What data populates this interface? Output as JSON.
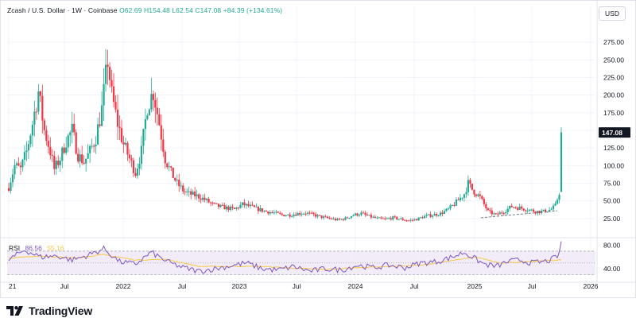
{
  "legend": {
    "symbol": "Zcash / U.S. Dollar · 1W · Coinbase",
    "open": "O62.69",
    "high": "H154.48",
    "low": "L62.54",
    "close": "C147.08",
    "change": "+84.39 (+134.61%)"
  },
  "currency": "USD",
  "last_price_label": "147.08",
  "rsi": {
    "title": "RSI",
    "value": "86.56",
    "ma_value": "55.16"
  },
  "brand": "TradingView",
  "colors": {
    "up": "#22ab94",
    "down": "#f23645",
    "rsi": "#7e57c2",
    "rsi_ma": "#f7c948",
    "rsi_band": "#ede7f6",
    "grid": "#f0f3fa",
    "text": "#131722",
    "axis_text": "#131722"
  },
  "chart_data": [
    {
      "type": "candlestick",
      "title": "Zcash / U.S. Dollar · 1W · Coinbase",
      "ylim": [
        0,
        300
      ],
      "y_ticks": [
        25,
        50,
        75,
        100,
        125,
        150,
        175,
        200,
        225,
        250,
        275
      ],
      "x_ticks": [
        "21",
        "Jul",
        "2022",
        "Jul",
        "2023",
        "Jul",
        "2024",
        "Jul",
        "2025",
        "Jul",
        "2026"
      ],
      "last_price": 147.08,
      "grid": true,
      "series": [
        {
          "name": "Zcash / U.S. Dollar",
          "anchors_week_close": [
            [
              0,
              70
            ],
            [
              3,
              100
            ],
            [
              6,
              95
            ],
            [
              9,
              120
            ],
            [
              12,
              160
            ],
            [
              15,
              205
            ],
            [
              18,
              150
            ],
            [
              21,
              120
            ],
            [
              23,
              95
            ],
            [
              26,
              110
            ],
            [
              29,
              135
            ],
            [
              32,
              150
            ],
            [
              35,
              115
            ],
            [
              38,
              105
            ],
            [
              41,
              120
            ],
            [
              44,
              140
            ],
            [
              47,
              180
            ],
            [
              50,
              250
            ],
            [
              52,
              200
            ],
            [
              55,
              160
            ],
            [
              58,
              130
            ],
            [
              61,
              110
            ],
            [
              64,
              90
            ],
            [
              67,
              120
            ],
            [
              70,
              185
            ],
            [
              73,
              205
            ],
            [
              76,
              160
            ],
            [
              79,
              110
            ],
            [
              82,
              90
            ],
            [
              85,
              75
            ],
            [
              88,
              65
            ],
            [
              91,
              60
            ],
            [
              94,
              58
            ],
            [
              97,
              55
            ],
            [
              100,
              50
            ],
            [
              103,
              45
            ],
            [
              106,
              42
            ],
            [
              110,
              40
            ],
            [
              114,
              38
            ],
            [
              118,
              45
            ],
            [
              122,
              42
            ],
            [
              126,
              38
            ],
            [
              130,
              35
            ],
            [
              134,
              33
            ],
            [
              138,
              30
            ],
            [
              142,
              30
            ],
            [
              146,
              32
            ],
            [
              150,
              33
            ],
            [
              154,
              30
            ],
            [
              158,
              27
            ],
            [
              162,
              25
            ],
            [
              166,
              23
            ],
            [
              170,
              25
            ],
            [
              174,
              30
            ],
            [
              178,
              32
            ],
            [
              182,
              28
            ],
            [
              186,
              25
            ],
            [
              190,
              24
            ],
            [
              194,
              26
            ],
            [
              198,
              24
            ],
            [
              202,
              22
            ],
            [
              206,
              24
            ],
            [
              210,
              28
            ],
            [
              214,
              30
            ],
            [
              218,
              32
            ],
            [
              222,
              38
            ],
            [
              226,
              48
            ],
            [
              230,
              60
            ],
            [
              232,
              75
            ],
            [
              234,
              66
            ],
            [
              238,
              55
            ],
            [
              240,
              45
            ],
            [
              242,
              35
            ],
            [
              246,
              30
            ],
            [
              250,
              35
            ],
            [
              254,
              42
            ],
            [
              258,
              40
            ],
            [
              262,
              38
            ],
            [
              266,
              35
            ],
            [
              270,
              35
            ],
            [
              274,
              38
            ],
            [
              276,
              43
            ],
            [
              278,
              62
            ],
            [
              279,
              150
            ]
          ]
        }
      ]
    },
    {
      "type": "line",
      "title": "RSI",
      "ylim": [
        20,
        90
      ],
      "y_ticks": [
        40,
        80
      ],
      "band": [
        30,
        70
      ],
      "series": [
        {
          "name": "RSI",
          "anchors": [
            [
              0,
              55
            ],
            [
              8,
              72
            ],
            [
              16,
              60
            ],
            [
              24,
              62
            ],
            [
              32,
              55
            ],
            [
              40,
              63
            ],
            [
              48,
              74
            ],
            [
              56,
              52
            ],
            [
              64,
              48
            ],
            [
              72,
              68
            ],
            [
              80,
              52
            ],
            [
              88,
              42
            ],
            [
              96,
              36
            ],
            [
              104,
              40
            ],
            [
              112,
              45
            ],
            [
              120,
              50
            ],
            [
              128,
              40
            ],
            [
              136,
              38
            ],
            [
              144,
              44
            ],
            [
              152,
              36
            ],
            [
              160,
              40
            ],
            [
              168,
              38
            ],
            [
              176,
              46
            ],
            [
              184,
              42
            ],
            [
              192,
              46
            ],
            [
              200,
              42
            ],
            [
              208,
              50
            ],
            [
              216,
              52
            ],
            [
              224,
              60
            ],
            [
              230,
              68
            ],
            [
              234,
              60
            ],
            [
              240,
              48
            ],
            [
              246,
              44
            ],
            [
              252,
              52
            ],
            [
              258,
              55
            ],
            [
              264,
              50
            ],
            [
              270,
              52
            ],
            [
              274,
              55
            ],
            [
              278,
              64
            ],
            [
              279,
              86.56
            ]
          ]
        },
        {
          "name": "RSI MA",
          "anchors": [
            [
              0,
              58
            ],
            [
              16,
              62
            ],
            [
              32,
              58
            ],
            [
              48,
              64
            ],
            [
              64,
              55
            ],
            [
              80,
              56
            ],
            [
              96,
              44
            ],
            [
              112,
              44
            ],
            [
              128,
              44
            ],
            [
              144,
              41
            ],
            [
              160,
              39
            ],
            [
              176,
              42
            ],
            [
              192,
              44
            ],
            [
              208,
              46
            ],
            [
              224,
              54
            ],
            [
              236,
              60
            ],
            [
              248,
              50
            ],
            [
              262,
              52
            ],
            [
              279,
              55.16
            ]
          ]
        }
      ]
    }
  ]
}
